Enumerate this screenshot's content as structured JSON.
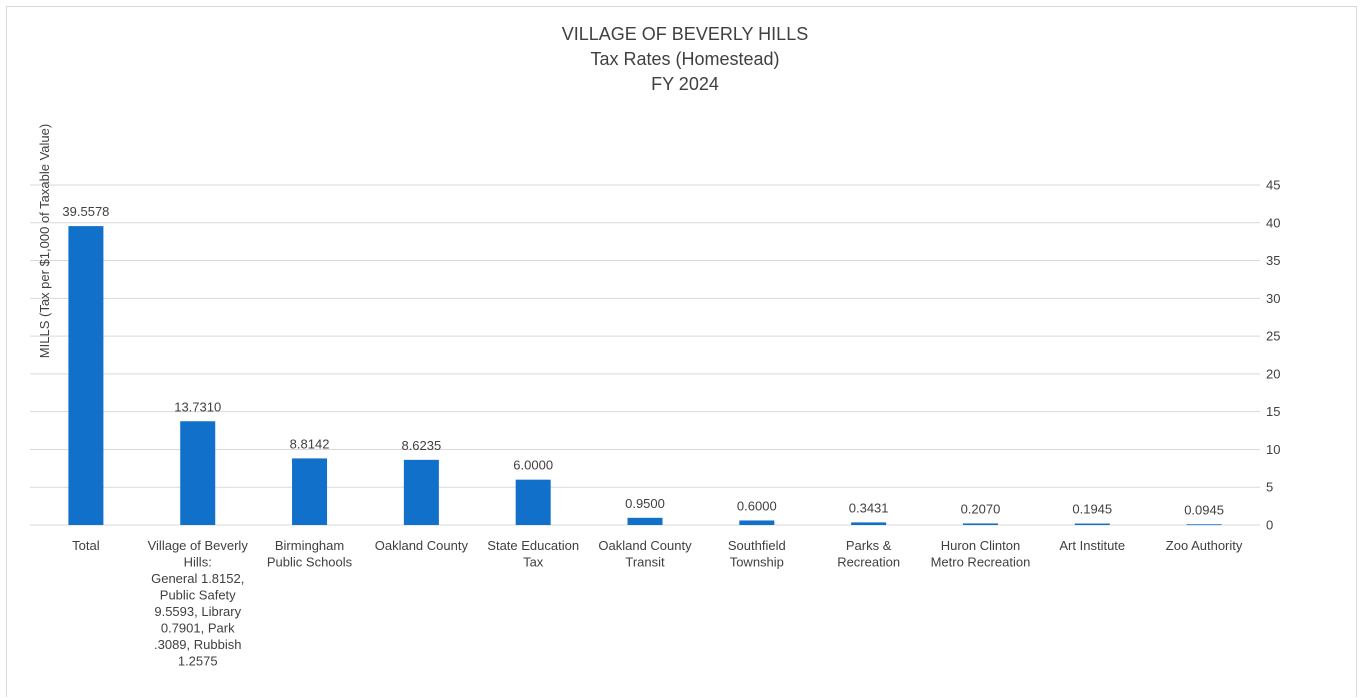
{
  "chart_data": {
    "type": "bar",
    "title": [
      "VILLAGE OF BEVERLY HILLS",
      "Tax Rates (Homestead)",
      "FY 2024"
    ],
    "ylabel": "MILLS (Tax per $1,000 of Taxable Value)",
    "xlabel": "",
    "y_axis_position": "right",
    "ylim": [
      0,
      45
    ],
    "yticks": [
      0,
      5,
      10,
      15,
      20,
      25,
      30,
      35,
      40,
      45
    ],
    "grid": true,
    "legend": "none",
    "bar_color": "#1170c9",
    "categories": [
      [
        "Total"
      ],
      [
        "Village of Beverly",
        "Hills:",
        "General 1.8152,",
        "Public Safety",
        "9.5593, Library",
        "0.7901, Park",
        ".3089, Rubbish",
        "1.2575"
      ],
      [
        "Birmingham",
        "Public Schools"
      ],
      [
        "Oakland County"
      ],
      [
        "State Education",
        "Tax"
      ],
      [
        "Oakland County",
        "Transit"
      ],
      [
        "Southfield",
        "Township"
      ],
      [
        "Parks &",
        "Recreation"
      ],
      [
        "Huron Clinton",
        "Metro Recreation"
      ],
      [
        "Art Institute"
      ],
      [
        "Zoo Authority"
      ]
    ],
    "values": [
      39.5578,
      13.731,
      8.8142,
      8.6235,
      6.0,
      0.95,
      0.6,
      0.3431,
      0.207,
      0.1945,
      0.0945
    ],
    "data_labels": [
      "39.5578",
      "13.7310",
      "8.8142",
      "8.6235",
      "6.0000",
      "0.9500",
      "0.6000",
      "0.3431",
      "0.2070",
      "0.1945",
      "0.0945"
    ]
  }
}
